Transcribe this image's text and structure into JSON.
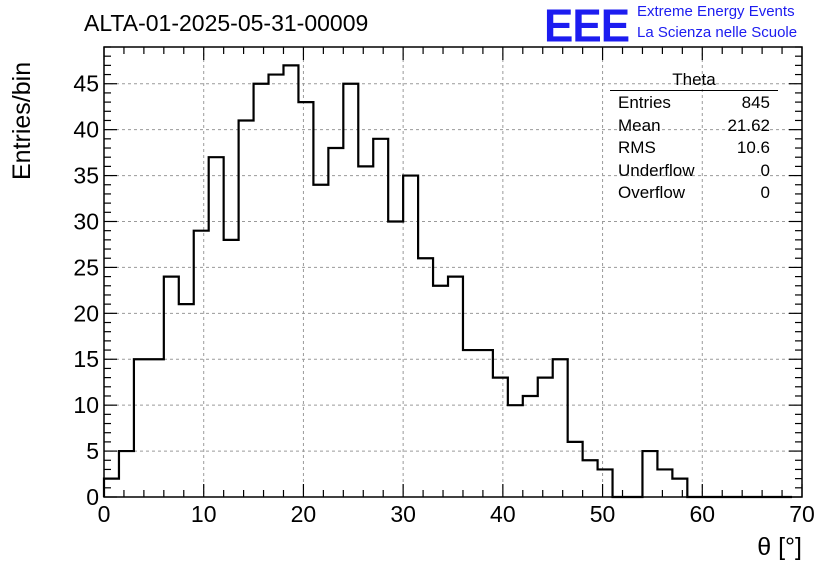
{
  "header": {
    "title": "ALTA-01-2025-05-31-00009",
    "logo_text": "EEE",
    "logo_line1": "Extreme Energy Events",
    "logo_line2": "La Scienza nelle Scuole"
  },
  "stats": {
    "title": "Theta",
    "rows": [
      {
        "label": "Entries",
        "value": "845"
      },
      {
        "label": "Mean",
        "value": "21.62"
      },
      {
        "label": "RMS",
        "value": "10.6"
      },
      {
        "label": "Underflow",
        "value": "0"
      },
      {
        "label": "Overflow",
        "value": "0"
      }
    ]
  },
  "chart_data": {
    "type": "bar",
    "style": "step-histogram",
    "title": "ALTA-01-2025-05-31-00009",
    "xlabel": "θ [°]",
    "ylabel": "Entries/bin",
    "xlim": [
      0,
      70
    ],
    "ylim": [
      0,
      49
    ],
    "grid": true,
    "bin_width": 1.5,
    "bin_edges_start": 0,
    "values": [
      2,
      5,
      15,
      15,
      24,
      21,
      29,
      37,
      28,
      41,
      45,
      46,
      47,
      43,
      34,
      38,
      45,
      36,
      39,
      30,
      35,
      26,
      23,
      24,
      16,
      16,
      13,
      10,
      11,
      13,
      15,
      6,
      4,
      3,
      0,
      0,
      5,
      3,
      2,
      0,
      0,
      0,
      0,
      0,
      0,
      0
    ],
    "x_ticks": [
      0,
      10,
      20,
      30,
      40,
      50,
      60,
      70
    ],
    "y_ticks": [
      0,
      5,
      10,
      15,
      20,
      25,
      30,
      35,
      40,
      45
    ],
    "line_color": "#000000"
  }
}
